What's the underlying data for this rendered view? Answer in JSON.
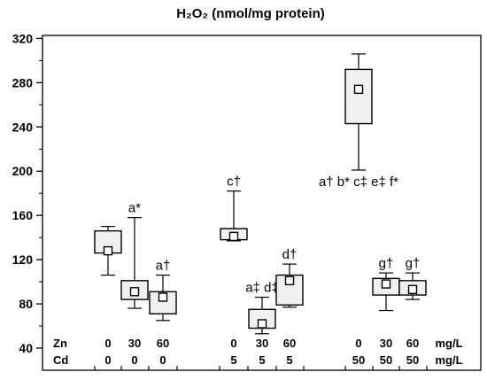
{
  "chart_data": {
    "type": "box",
    "title": "H₂O₂ (nmol/mg protein)",
    "ylim": [
      30,
      330
    ],
    "yticks": [
      40,
      80,
      120,
      160,
      200,
      240,
      280,
      320
    ],
    "grid": false,
    "legend": "none",
    "box_fill": "#f0f0f0",
    "groups": [
      {
        "zn": "0",
        "cd": "0",
        "min": 106,
        "q1": 126,
        "median": 128,
        "q3": 146,
        "max": 150,
        "annotation": ""
      },
      {
        "zn": "30",
        "cd": "0",
        "min": 76,
        "q1": 84,
        "median": 91,
        "q3": 101,
        "max": 158,
        "annotation": "a*"
      },
      {
        "zn": "60",
        "cd": "0",
        "min": 65,
        "q1": 71,
        "median": 86,
        "q3": 91,
        "max": 106,
        "annotation": "a†"
      },
      {
        "zn": "0",
        "cd": "5",
        "min": 137,
        "q1": 138,
        "median": 141,
        "q3": 148,
        "max": 182,
        "annotation": "c†"
      },
      {
        "zn": "30",
        "cd": "5",
        "min": 53,
        "q1": 58,
        "median": 62,
        "q3": 75,
        "max": 86,
        "annotation": "a‡ d‡"
      },
      {
        "zn": "60",
        "cd": "5",
        "min": 77,
        "q1": 79,
        "median": 101,
        "q3": 106,
        "max": 116,
        "annotation": "d†"
      },
      {
        "zn": "0",
        "cd": "50",
        "min": 201,
        "q1": 243,
        "median": 274,
        "q3": 292,
        "max": 306,
        "annotation": "a† b* c‡ e‡ f*"
      },
      {
        "zn": "30",
        "cd": "50",
        "min": 74,
        "q1": 88,
        "median": 98,
        "q3": 103,
        "max": 108,
        "annotation": "g†"
      },
      {
        "zn": "60",
        "cd": "50",
        "min": 84,
        "q1": 88,
        "median": 93,
        "q3": 101,
        "max": 108,
        "annotation": "g†"
      }
    ],
    "row_labels": {
      "zn": "Zn",
      "cd": "Cd"
    },
    "unit_label": "mg/L"
  }
}
